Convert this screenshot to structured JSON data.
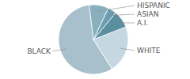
{
  "chart_data": {
    "type": "pie",
    "categories": [
      "BLACK",
      "WHITE",
      "A.I.",
      "ASIAN",
      "HISPANIC"
    ],
    "values": [
      57,
      22,
      8,
      4,
      9
    ],
    "colors": [
      "#a8bfcc",
      "#c5d8e2",
      "#5a8fa0",
      "#6a9db0",
      "#8ab0be"
    ]
  }
}
